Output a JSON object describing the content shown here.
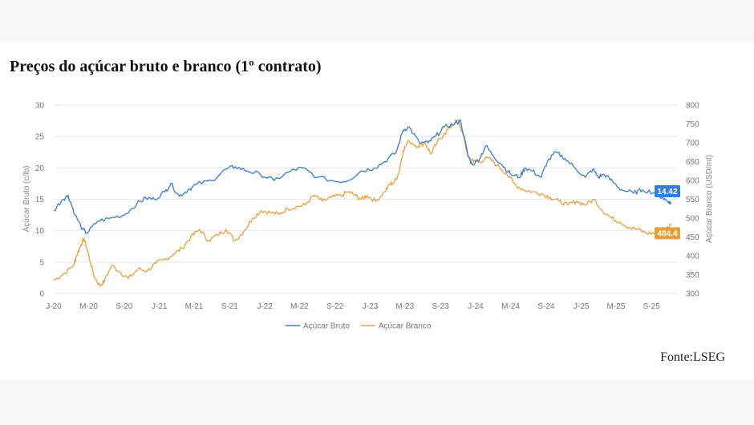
{
  "header": {
    "title": "Preços do açúcar bruto e branco (1º contrato)"
  },
  "footer": {
    "source": "Fonte:LSEG"
  },
  "colors": {
    "raw": "#3a7bd5",
    "white": "#e8a13a",
    "grid": "#e9e9e9"
  },
  "chart_data": {
    "type": "line",
    "ylabel_left": "Açúcar Bruto (c/lb)",
    "ylabel_right": "Açúcar Branco (USD/mt)",
    "ylim_left": [
      0,
      30
    ],
    "ylim_right": [
      300,
      800
    ],
    "yticks_left": [
      0,
      5,
      10,
      15,
      20,
      25,
      30
    ],
    "yticks_right": [
      300,
      350,
      400,
      450,
      500,
      550,
      600,
      650,
      700,
      750,
      800
    ],
    "xlim": [
      "2020-01-01",
      "2025-12-01"
    ],
    "xticks": [
      {
        "label": "J-20",
        "date": "2020-01-01"
      },
      {
        "label": "M-20",
        "date": "2020-05-01"
      },
      {
        "label": "S-20",
        "date": "2020-09-01"
      },
      {
        "label": "J-21",
        "date": "2021-01-01"
      },
      {
        "label": "M-21",
        "date": "2021-05-01"
      },
      {
        "label": "S-21",
        "date": "2021-09-01"
      },
      {
        "label": "J-22",
        "date": "2022-01-01"
      },
      {
        "label": "M-22",
        "date": "2022-05-01"
      },
      {
        "label": "S-22",
        "date": "2022-09-01"
      },
      {
        "label": "J-23",
        "date": "2023-01-01"
      },
      {
        "label": "M-23",
        "date": "2023-05-01"
      },
      {
        "label": "S-23",
        "date": "2023-09-01"
      },
      {
        "label": "J-24",
        "date": "2024-01-01"
      },
      {
        "label": "M-24",
        "date": "2024-05-01"
      },
      {
        "label": "S-24",
        "date": "2024-09-01"
      },
      {
        "label": "J-25",
        "date": "2025-01-01"
      },
      {
        "label": "M-25",
        "date": "2025-05-01"
      },
      {
        "label": "S-25",
        "date": "2025-09-01"
      }
    ],
    "legend": {
      "position": "bottom"
    },
    "grid": true,
    "series": [
      {
        "name": "Açúcar Bruto",
        "axis": "left",
        "end_label": "14.42",
        "points": [
          [
            "2020-01-01",
            13.2
          ],
          [
            "2020-02-01",
            15.0
          ],
          [
            "2020-02-20",
            15.6
          ],
          [
            "2020-03-15",
            12.5
          ],
          [
            "2020-04-10",
            10.2
          ],
          [
            "2020-04-25",
            9.6
          ],
          [
            "2020-06-01",
            11.5
          ],
          [
            "2020-07-15",
            12.0
          ],
          [
            "2020-09-01",
            12.5
          ],
          [
            "2020-10-15",
            14.3
          ],
          [
            "2020-11-15",
            15.2
          ],
          [
            "2020-12-15",
            15.0
          ],
          [
            "2021-01-20",
            16.2
          ],
          [
            "2021-02-10",
            17.5
          ],
          [
            "2021-03-10",
            15.5
          ],
          [
            "2021-04-10",
            16.5
          ],
          [
            "2021-05-10",
            17.4
          ],
          [
            "2021-07-01",
            18.0
          ],
          [
            "2021-08-20",
            19.8
          ],
          [
            "2021-09-20",
            20.2
          ],
          [
            "2021-11-01",
            19.5
          ],
          [
            "2021-12-15",
            19.0
          ],
          [
            "2022-02-01",
            18.0
          ],
          [
            "2022-04-01",
            19.5
          ],
          [
            "2022-05-10",
            20.0
          ],
          [
            "2022-07-01",
            18.5
          ],
          [
            "2022-09-10",
            17.8
          ],
          [
            "2022-10-15",
            18.0
          ],
          [
            "2022-12-01",
            19.5
          ],
          [
            "2023-01-15",
            20.0
          ],
          [
            "2023-02-20",
            21.0
          ],
          [
            "2023-04-01",
            22.5
          ],
          [
            "2023-04-25",
            26.0
          ],
          [
            "2023-05-15",
            26.5
          ],
          [
            "2023-06-20",
            24.0
          ],
          [
            "2023-07-20",
            24.0
          ],
          [
            "2023-08-15",
            25.0
          ],
          [
            "2023-09-15",
            26.5
          ],
          [
            "2023-10-20",
            27.0
          ],
          [
            "2023-11-10",
            27.5
          ],
          [
            "2023-12-05",
            22.0
          ],
          [
            "2023-12-20",
            20.5
          ],
          [
            "2024-01-15",
            21.5
          ],
          [
            "2024-02-05",
            23.5
          ],
          [
            "2024-03-01",
            22.0
          ],
          [
            "2024-04-01",
            20.5
          ],
          [
            "2024-05-01",
            19.0
          ],
          [
            "2024-06-01",
            18.5
          ],
          [
            "2024-06-20",
            20.0
          ],
          [
            "2024-07-15",
            19.5
          ],
          [
            "2024-08-15",
            18.5
          ],
          [
            "2024-09-05",
            21.0
          ],
          [
            "2024-10-05",
            22.5
          ],
          [
            "2024-11-05",
            21.5
          ],
          [
            "2024-12-10",
            20.0
          ],
          [
            "2025-01-15",
            18.5
          ],
          [
            "2025-02-10",
            19.8
          ],
          [
            "2025-03-01",
            18.5
          ],
          [
            "2025-03-20",
            19.0
          ],
          [
            "2025-04-20",
            17.8
          ],
          [
            "2025-05-20",
            16.5
          ],
          [
            "2025-07-01",
            16.0
          ],
          [
            "2025-08-01",
            16.5
          ],
          [
            "2025-09-15",
            16.0
          ],
          [
            "2025-10-10",
            15.2
          ],
          [
            "2025-10-30",
            14.6
          ],
          [
            "2025-11-08",
            14.42
          ]
        ]
      },
      {
        "name": "Açúcar Branco",
        "axis": "right",
        "end_label": "484.4",
        "points": [
          [
            "2020-01-01",
            335
          ],
          [
            "2020-02-01",
            350
          ],
          [
            "2020-03-10",
            375
          ],
          [
            "2020-03-20",
            400
          ],
          [
            "2020-04-05",
            430
          ],
          [
            "2020-04-15",
            445
          ],
          [
            "2020-04-28",
            410
          ],
          [
            "2020-05-20",
            345
          ],
          [
            "2020-06-10",
            320
          ],
          [
            "2020-06-25",
            335
          ],
          [
            "2020-07-20",
            375
          ],
          [
            "2020-08-20",
            355
          ],
          [
            "2020-09-15",
            340
          ],
          [
            "2020-10-20",
            365
          ],
          [
            "2020-11-20",
            360
          ],
          [
            "2020-12-20",
            380
          ],
          [
            "2021-01-20",
            390
          ],
          [
            "2021-02-20",
            405
          ],
          [
            "2021-03-20",
            420
          ],
          [
            "2021-04-20",
            450
          ],
          [
            "2021-05-20",
            470
          ],
          [
            "2021-06-20",
            440
          ],
          [
            "2021-07-20",
            455
          ],
          [
            "2021-08-20",
            470
          ],
          [
            "2021-09-20",
            440
          ],
          [
            "2021-10-20",
            465
          ],
          [
            "2021-11-20",
            500
          ],
          [
            "2021-12-20",
            520
          ],
          [
            "2022-01-20",
            515
          ],
          [
            "2022-02-20",
            510
          ],
          [
            "2022-03-20",
            525
          ],
          [
            "2022-04-20",
            530
          ],
          [
            "2022-05-20",
            535
          ],
          [
            "2022-06-20",
            560
          ],
          [
            "2022-07-20",
            545
          ],
          [
            "2022-08-20",
            555
          ],
          [
            "2022-09-20",
            560
          ],
          [
            "2022-10-20",
            570
          ],
          [
            "2022-11-10",
            560
          ],
          [
            "2022-12-01",
            550
          ],
          [
            "2022-12-20",
            560
          ],
          [
            "2023-01-20",
            545
          ],
          [
            "2023-02-20",
            570
          ],
          [
            "2023-03-10",
            590
          ],
          [
            "2023-03-25",
            595
          ],
          [
            "2023-04-10",
            620
          ],
          [
            "2023-04-25",
            680
          ],
          [
            "2023-05-15",
            705
          ],
          [
            "2023-06-15",
            690
          ],
          [
            "2023-07-10",
            700
          ],
          [
            "2023-07-30",
            670
          ],
          [
            "2023-08-20",
            700
          ],
          [
            "2023-09-15",
            725
          ],
          [
            "2023-10-10",
            745
          ],
          [
            "2023-10-30",
            760
          ],
          [
            "2023-11-15",
            730
          ],
          [
            "2023-12-05",
            665
          ],
          [
            "2023-12-25",
            650
          ],
          [
            "2024-01-15",
            650
          ],
          [
            "2024-02-15",
            660
          ],
          [
            "2024-03-15",
            640
          ],
          [
            "2024-04-15",
            620
          ],
          [
            "2024-05-15",
            590
          ],
          [
            "2024-06-15",
            575
          ],
          [
            "2024-07-15",
            570
          ],
          [
            "2024-08-15",
            565
          ],
          [
            "2024-09-15",
            555
          ],
          [
            "2024-10-15",
            545
          ],
          [
            "2024-11-15",
            535
          ],
          [
            "2024-12-15",
            545
          ],
          [
            "2025-01-15",
            535
          ],
          [
            "2025-02-15",
            550
          ],
          [
            "2025-03-15",
            520
          ],
          [
            "2025-04-15",
            500
          ],
          [
            "2025-05-15",
            490
          ],
          [
            "2025-06-15",
            475
          ],
          [
            "2025-07-15",
            470
          ],
          [
            "2025-08-15",
            460
          ],
          [
            "2025-09-15",
            460
          ],
          [
            "2025-10-15",
            465
          ],
          [
            "2025-11-08",
            484.4
          ]
        ]
      }
    ]
  }
}
